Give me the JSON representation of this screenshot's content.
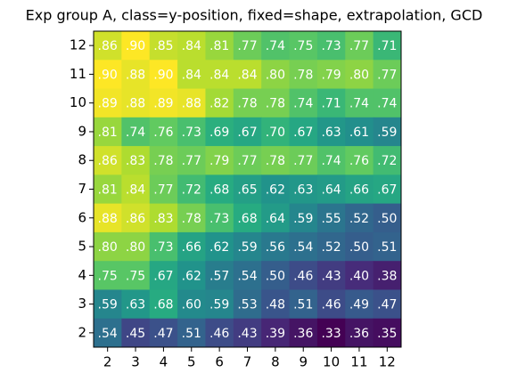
{
  "chart_data": {
    "type": "heatmap",
    "title": "Exp group A, class=y-position, fixed=shape, extrapolation, GCD",
    "colormap": "viridis",
    "x": [
      2,
      3,
      4,
      5,
      6,
      7,
      8,
      9,
      10,
      11,
      12
    ],
    "y": [
      12,
      11,
      10,
      9,
      8,
      7,
      6,
      5,
      4,
      3,
      2
    ],
    "values": [
      [
        0.86,
        0.9,
        0.85,
        0.84,
        0.81,
        0.77,
        0.74,
        0.75,
        0.73,
        0.77,
        0.71
      ],
      [
        0.9,
        0.88,
        0.9,
        0.84,
        0.84,
        0.84,
        0.8,
        0.78,
        0.79,
        0.8,
        0.77
      ],
      [
        0.89,
        0.88,
        0.89,
        0.88,
        0.82,
        0.78,
        0.78,
        0.74,
        0.71,
        0.74,
        0.74
      ],
      [
        0.81,
        0.74,
        0.76,
        0.73,
        0.69,
        0.67,
        0.7,
        0.67,
        0.63,
        0.61,
        0.59
      ],
      [
        0.86,
        0.83,
        0.78,
        0.77,
        0.79,
        0.77,
        0.78,
        0.77,
        0.74,
        0.76,
        0.72
      ],
      [
        0.81,
        0.84,
        0.77,
        0.72,
        0.68,
        0.65,
        0.62,
        0.63,
        0.64,
        0.66,
        0.67
      ],
      [
        0.88,
        0.86,
        0.83,
        0.78,
        0.73,
        0.68,
        0.64,
        0.59,
        0.55,
        0.52,
        0.5
      ],
      [
        0.8,
        0.8,
        0.73,
        0.66,
        0.62,
        0.59,
        0.56,
        0.54,
        0.52,
        0.5,
        0.51
      ],
      [
        0.75,
        0.75,
        0.67,
        0.62,
        0.57,
        0.54,
        0.5,
        0.46,
        0.43,
        0.4,
        0.38
      ],
      [
        0.59,
        0.63,
        0.68,
        0.6,
        0.59,
        0.53,
        0.48,
        0.51,
        0.46,
        0.49,
        0.47
      ],
      [
        0.54,
        0.45,
        0.47,
        0.51,
        0.46,
        0.43,
        0.39,
        0.36,
        0.33,
        0.36,
        0.35
      ]
    ],
    "value_labels": [
      [
        ".86",
        ".90",
        ".85",
        ".84",
        ".81",
        ".77",
        ".74",
        ".75",
        ".73",
        ".77",
        ".71"
      ],
      [
        ".90",
        ".88",
        ".90",
        ".84",
        ".84",
        ".84",
        ".80",
        ".78",
        ".79",
        ".80",
        ".77"
      ],
      [
        ".89",
        ".88",
        ".89",
        ".88",
        ".82",
        ".78",
        ".78",
        ".74",
        ".71",
        ".74",
        ".74"
      ],
      [
        ".81",
        ".74",
        ".76",
        ".73",
        ".69",
        ".67",
        ".70",
        ".67",
        ".63",
        ".61",
        ".59"
      ],
      [
        ".86",
        ".83",
        ".78",
        ".77",
        ".79",
        ".77",
        ".78",
        ".77",
        ".74",
        ".76",
        ".72"
      ],
      [
        ".81",
        ".84",
        ".77",
        ".72",
        ".68",
        ".65",
        ".62",
        ".63",
        ".64",
        ".66",
        ".67"
      ],
      [
        ".88",
        ".86",
        ".83",
        ".78",
        ".73",
        ".68",
        ".64",
        ".59",
        ".55",
        ".52",
        ".50"
      ],
      [
        ".80",
        ".80",
        ".73",
        ".66",
        ".62",
        ".59",
        ".56",
        ".54",
        ".52",
        ".50",
        ".51"
      ],
      [
        ".75",
        ".75",
        ".67",
        ".62",
        ".57",
        ".54",
        ".50",
        ".46",
        ".43",
        ".40",
        ".38"
      ],
      [
        ".59",
        ".63",
        ".68",
        ".60",
        ".59",
        ".53",
        ".48",
        ".51",
        ".46",
        ".49",
        ".47"
      ],
      [
        ".54",
        ".45",
        ".47",
        ".51",
        ".46",
        ".43",
        ".39",
        ".36",
        ".33",
        ".36",
        ".35"
      ]
    ]
  }
}
